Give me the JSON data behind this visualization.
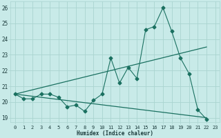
{
  "title": "",
  "xlabel": "Humidex (Indice chaleur)",
  "xlim": [
    -0.5,
    23.5
  ],
  "ylim": [
    18.7,
    26.4
  ],
  "xticks": [
    0,
    1,
    2,
    3,
    4,
    5,
    6,
    7,
    8,
    9,
    10,
    11,
    12,
    13,
    14,
    15,
    16,
    17,
    18,
    19,
    20,
    21,
    22,
    23
  ],
  "yticks": [
    19,
    20,
    21,
    22,
    23,
    24,
    25,
    26
  ],
  "bg_color": "#c8eae8",
  "grid_color": "#aad4d0",
  "line_color": "#1a7060",
  "series1_y": [
    20.5,
    20.2,
    20.2,
    20.5,
    20.5,
    20.3,
    19.7,
    19.8,
    19.4,
    20.1,
    20.5,
    22.8,
    21.2,
    22.2,
    21.5,
    24.6,
    24.8,
    26.0,
    24.5,
    22.8,
    21.8,
    19.5,
    18.9
  ],
  "series2_x": [
    0,
    22
  ],
  "series2_y": [
    20.5,
    23.5
  ],
  "series3_x": [
    0,
    22
  ],
  "series3_y": [
    20.5,
    19.0
  ]
}
